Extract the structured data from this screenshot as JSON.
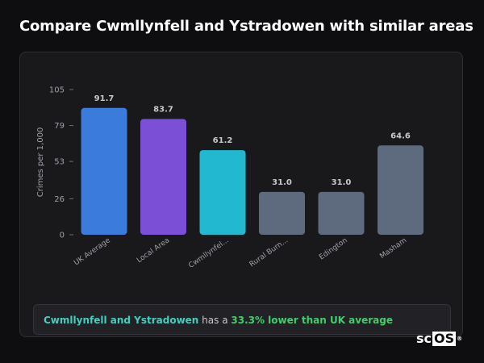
{
  "title": "Compare Cwmllynfell and Ystradowen with similar areas",
  "chart_data": {
    "type": "bar",
    "ylabel": "Crimes per 1,000",
    "xlabel": "",
    "ylim": [
      0,
      105
    ],
    "yticks": [
      0,
      26,
      53,
      79,
      105
    ],
    "grid": false,
    "categories": [
      "UK Average",
      "Local Area",
      "Cwmllynfel...",
      "Rural Burn...",
      "Edington",
      "Masham"
    ],
    "values": [
      91.7,
      83.7,
      61.2,
      31.0,
      31.0,
      64.6
    ],
    "value_labels": [
      "91.7",
      "83.7",
      "61.2",
      "31.0",
      "31.0",
      "64.6"
    ],
    "colors": [
      "#3a7bdc",
      "#7b4fd6",
      "#22b8d0",
      "#5e6a7e",
      "#5e6a7e",
      "#5e6a7e"
    ]
  },
  "summary": {
    "area": "Cwmllynfell and Ystradowen",
    "middle": " has a ",
    "comparison": "33.3% lower than UK average"
  },
  "logo": {
    "prefix": "sc",
    "boxed": "OS",
    "mark": "®"
  }
}
